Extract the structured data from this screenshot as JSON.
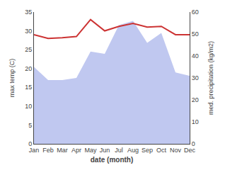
{
  "chart_data": {
    "type": "line",
    "categories": [
      "Jan",
      "Feb",
      "Mar",
      "Apr",
      "May",
      "Jun",
      "Jul",
      "Aug",
      "Sep",
      "Oct",
      "Nov",
      "Dec"
    ],
    "series": [
      {
        "type": "area",
        "color": "#c0c8f0",
        "axis": "y2",
        "values": [
          35.0,
          29.0,
          29.0,
          30.0,
          42.0,
          41.0,
          54.0,
          56.0,
          46.0,
          50.5,
          32.5,
          31.0
        ]
      },
      {
        "type": "line",
        "color": "#cc3333",
        "values": [
          29.0,
          28.0,
          28.2,
          28.5,
          33.0,
          30.0,
          31.2,
          32.0,
          31.0,
          31.2,
          29.0,
          29.0
        ]
      }
    ],
    "xlabel": "date (month)",
    "ylabel": "max temp (C)",
    "y2label": "med. precipitation (kg/m2)",
    "ylim": [
      0,
      35
    ],
    "yticks": [
      0,
      5,
      10,
      15,
      20,
      25,
      30,
      35
    ],
    "y2lim": [
      0,
      60
    ],
    "y2ticks": [
      0,
      10,
      20,
      30,
      40,
      50,
      60
    ],
    "grid": false
  }
}
